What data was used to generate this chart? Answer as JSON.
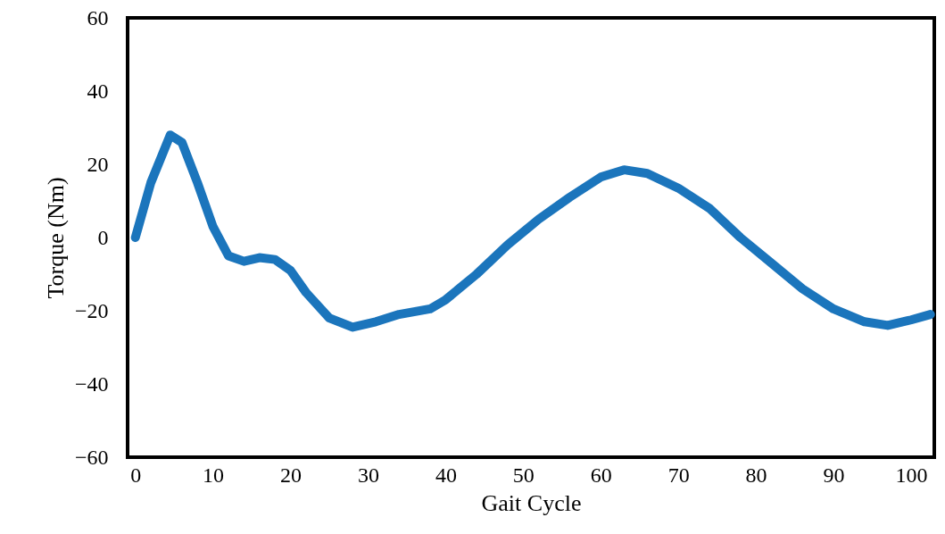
{
  "chart_data": {
    "type": "line",
    "xlabel": "Gait Cycle",
    "ylabel": "Torque (Nm)",
    "xlim": [
      -1,
      103
    ],
    "xticks": [
      0,
      10,
      20,
      30,
      40,
      50,
      60,
      70,
      80,
      90,
      100
    ],
    "ylim": [
      -60,
      60
    ],
    "yticks": [
      -60,
      -40,
      -20,
      0,
      20,
      40,
      60
    ],
    "grid": false,
    "series": [
      {
        "color": "#1b75bc",
        "x": [
          0,
          2,
          4.5,
          6,
          8,
          10,
          12,
          14,
          16,
          18,
          20,
          22,
          25,
          28,
          31,
          34,
          38,
          40,
          44,
          48,
          52,
          56,
          60,
          63,
          66,
          70,
          74,
          78,
          82,
          86,
          90,
          94,
          97,
          100,
          102.5
        ],
        "values": [
          0,
          15,
          28,
          26,
          15,
          3,
          -5,
          -6.5,
          -5.5,
          -6,
          -9,
          -15,
          -22,
          -24.5,
          -23,
          -21,
          -19.5,
          -17,
          -10,
          -2,
          5,
          11,
          16.5,
          18.5,
          17.5,
          13.5,
          8,
          0,
          -7,
          -14,
          -19.5,
          -23,
          -24,
          -22.5,
          -21
        ]
      }
    ]
  }
}
